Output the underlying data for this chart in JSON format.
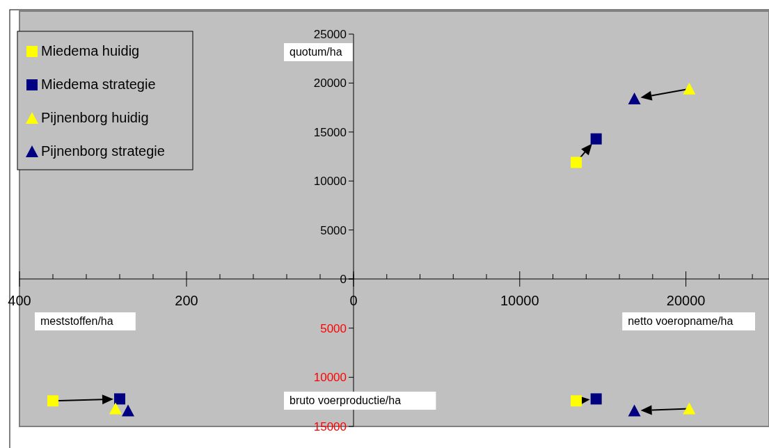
{
  "chart_data": [
    {
      "type": "scatter",
      "ylabel": "quotum/ha",
      "xlabel": "netto voeropname/ha",
      "xlim": [
        0,
        25000
      ],
      "ylim": [
        0,
        25000
      ],
      "xticks": [
        0,
        {
          "value": 2000,
          "label": null
        },
        {
          "value": 4000,
          "label": null
        },
        {
          "value": 6000,
          "label": null
        },
        {
          "value": 8000,
          "label": null
        },
        10000,
        {
          "value": 12000,
          "label": null
        },
        {
          "value": 14000,
          "label": null
        },
        {
          "value": 16000,
          "label": null
        },
        {
          "value": 18000,
          "label": null
        },
        20000,
        {
          "value": 22000,
          "label": null
        },
        {
          "value": 24000,
          "label": null
        }
      ],
      "yticks": [
        0,
        5000,
        10000,
        15000,
        20000,
        25000
      ],
      "legend": "top left",
      "grid": false,
      "series": [
        {
          "name": "Miedema huidig",
          "color": "#ffff00",
          "marker": "square",
          "x": [
            13400
          ],
          "values": [
            11900
          ]
        },
        {
          "name": "Miedema strategie",
          "color": "#000080",
          "marker": "square",
          "x": [
            14600
          ],
          "values": [
            14300
          ]
        },
        {
          "name": "Pijnenborg huidig",
          "color": "#ffff00",
          "marker": "triangle",
          "x": [
            20200
          ],
          "values": [
            19400
          ]
        },
        {
          "name": "Pijnenborg strategie",
          "color": "#000080",
          "marker": "triangle",
          "x": [
            16900
          ],
          "values": [
            18400
          ]
        }
      ]
    },
    {
      "type": "scatter",
      "ylabel": "bruto voerproductie/ha",
      "xlim": [
        0,
        25000
      ],
      "ylim": [
        15000,
        0
      ],
      "yticks": [
        {
          "value": 0,
          "label": null
        },
        5000,
        10000,
        15000
      ],
      "tick_labels": "y",
      "series": [
        {
          "color": "#ffff00",
          "marker": "square",
          "x": [
            13400
          ],
          "values": [
            12400
          ]
        },
        {
          "color": "#000080",
          "marker": "square",
          "x": [
            14600
          ],
          "values": [
            12200
          ]
        },
        {
          "color": "#ffff00",
          "marker": "triangle",
          "x": [
            20200
          ],
          "values": [
            13200
          ]
        },
        {
          "color": "#000080",
          "marker": "triangle",
          "x": [
            16900
          ],
          "values": [
            13400
          ]
        }
      ]
    },
    {
      "type": "scatter",
      "xlabel": "meststoffen/ha",
      "xlim": [
        400,
        0
      ],
      "ylim": [
        15000,
        0
      ],
      "xticks": [
        400,
        {
          "value": 360,
          "label": null
        },
        {
          "value": 320,
          "label": null
        },
        {
          "value": 280,
          "label": null
        },
        {
          "value": 240,
          "label": null
        },
        200,
        {
          "value": 160,
          "label": null
        },
        {
          "value": 120,
          "label": null
        },
        {
          "value": 80,
          "label": null
        },
        {
          "value": 40,
          "label": null
        },
        {
          "value": 0,
          "label": null
        }
      ],
      "tick_labels": "x",
      "series": [
        {
          "color": "#ffff00",
          "marker": "square",
          "x": [
            360
          ],
          "values": [
            12400
          ]
        },
        {
          "color": "#000080",
          "marker": "square",
          "x": [
            280
          ],
          "values": [
            12200
          ]
        },
        {
          "color": "#ffff00",
          "marker": "triangle",
          "x": [
            285
          ],
          "values": [
            13200
          ]
        },
        {
          "color": "#000080",
          "marker": "triangle",
          "x": [
            270
          ],
          "values": [
            13400
          ]
        }
      ]
    }
  ]
}
